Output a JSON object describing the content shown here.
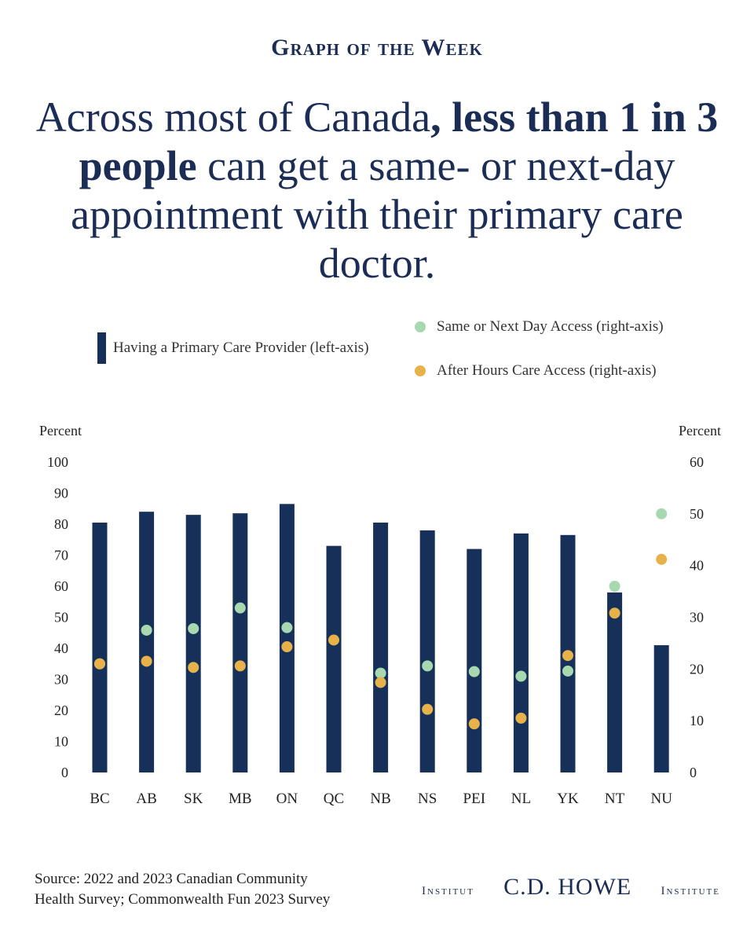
{
  "kicker": "Graph of the Week",
  "headline": {
    "part1": "Across most of Canada",
    "bold": ", less than 1 in 3 people",
    "part2": " can get a same- or next-day appointment with their primary care doctor."
  },
  "colors": {
    "bar": "#17305a",
    "same_day": "#a8d8b0",
    "after_hours": "#e8b24a"
  },
  "chart_data": {
    "type": "bar",
    "categories": [
      "BC",
      "AB",
      "SK",
      "MB",
      "ON",
      "QC",
      "NB",
      "NS",
      "PEI",
      "NL",
      "YK",
      "NT",
      "NU"
    ],
    "left_axis": {
      "label": "Percent",
      "range": [
        0,
        100
      ],
      "ticks": [
        0,
        10,
        20,
        30,
        40,
        50,
        60,
        70,
        80,
        90,
        100
      ]
    },
    "right_axis": {
      "label": "Percent",
      "range": [
        0,
        60
      ],
      "ticks": [
        0,
        10,
        20,
        30,
        40,
        50,
        60
      ]
    },
    "series": [
      {
        "name": "Having a Primary Care Provider (left-axis)",
        "type": "bar",
        "axis": "left",
        "values": [
          80.5,
          84,
          83,
          83.5,
          86.5,
          73,
          80.5,
          78,
          72,
          77,
          76.5,
          58,
          41
        ]
      },
      {
        "name": "Same or Next Day Access (right-axis)",
        "type": "scatter",
        "axis": "right",
        "values": [
          21,
          27.5,
          27.8,
          31.8,
          28,
          null,
          19.2,
          20.6,
          19.5,
          18.6,
          19.6,
          36,
          50
        ]
      },
      {
        "name": "After Hours Care Access (right-axis)",
        "type": "scatter",
        "axis": "right",
        "values": [
          21,
          21.5,
          20.3,
          20.6,
          24.3,
          25.6,
          17.4,
          12.2,
          9.4,
          10.5,
          22.6,
          30.8,
          41.2
        ]
      }
    ],
    "legend": "top"
  },
  "source": {
    "line1": "Source: 2022 and 2023 Canadian Community",
    "line2": "Health Survey; Commonwealth Fun 2023 Survey"
  },
  "logo": {
    "left": "Institut",
    "main": "C.D. HOWE",
    "right": "Institute"
  }
}
